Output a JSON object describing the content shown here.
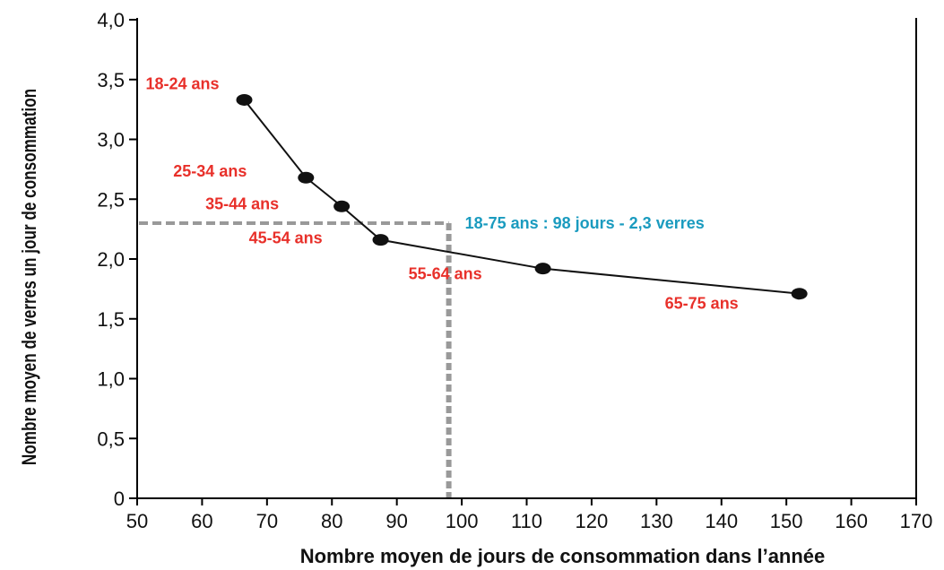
{
  "chart_data": {
    "type": "line",
    "xlabel": "Nombre moyen de jours de consommation dans l’année",
    "ylabel": "Nombre moyen de verres un jour de consommation",
    "xlim": [
      50,
      170
    ],
    "ylim": [
      0,
      4.0
    ],
    "x_ticks": [
      50,
      60,
      70,
      80,
      90,
      100,
      110,
      120,
      130,
      140,
      150,
      160,
      170
    ],
    "x_tick_labels": [
      "50",
      "60",
      "70",
      "80",
      "90",
      "100",
      "110",
      "120",
      "130",
      "140",
      "150",
      "160",
      "170"
    ],
    "y_ticks": [
      0,
      0.5,
      1.0,
      1.5,
      2.0,
      2.5,
      3.0,
      3.5,
      4.0
    ],
    "y_tick_labels": [
      "0",
      "0,5",
      "1,0",
      "1,5",
      "2,0",
      "2,5",
      "3,0",
      "3,5",
      "4,0"
    ],
    "grid": false,
    "series": [
      {
        "color": "#111111",
        "points": [
          {
            "label": "18-24 ans",
            "x": 66.5,
            "y": 3.33
          },
          {
            "label": "25-34 ans",
            "x": 76,
            "y": 2.68
          },
          {
            "label": "35-44 ans",
            "x": 81.5,
            "y": 2.44
          },
          {
            "label": "45-54 ans",
            "x": 87.5,
            "y": 2.16
          },
          {
            "label": "55-64 ans",
            "x": 112.5,
            "y": 1.92
          },
          {
            "label": "65-75 ans",
            "x": 152,
            "y": 1.71
          }
        ]
      }
    ],
    "reference": {
      "label": "18-75 ans : 98 jours - 2,3 verres",
      "x": 98,
      "y": 2.3,
      "color": "#999999",
      "label_color": "#1a9bbf"
    },
    "point_label_color": "#e8302a"
  }
}
